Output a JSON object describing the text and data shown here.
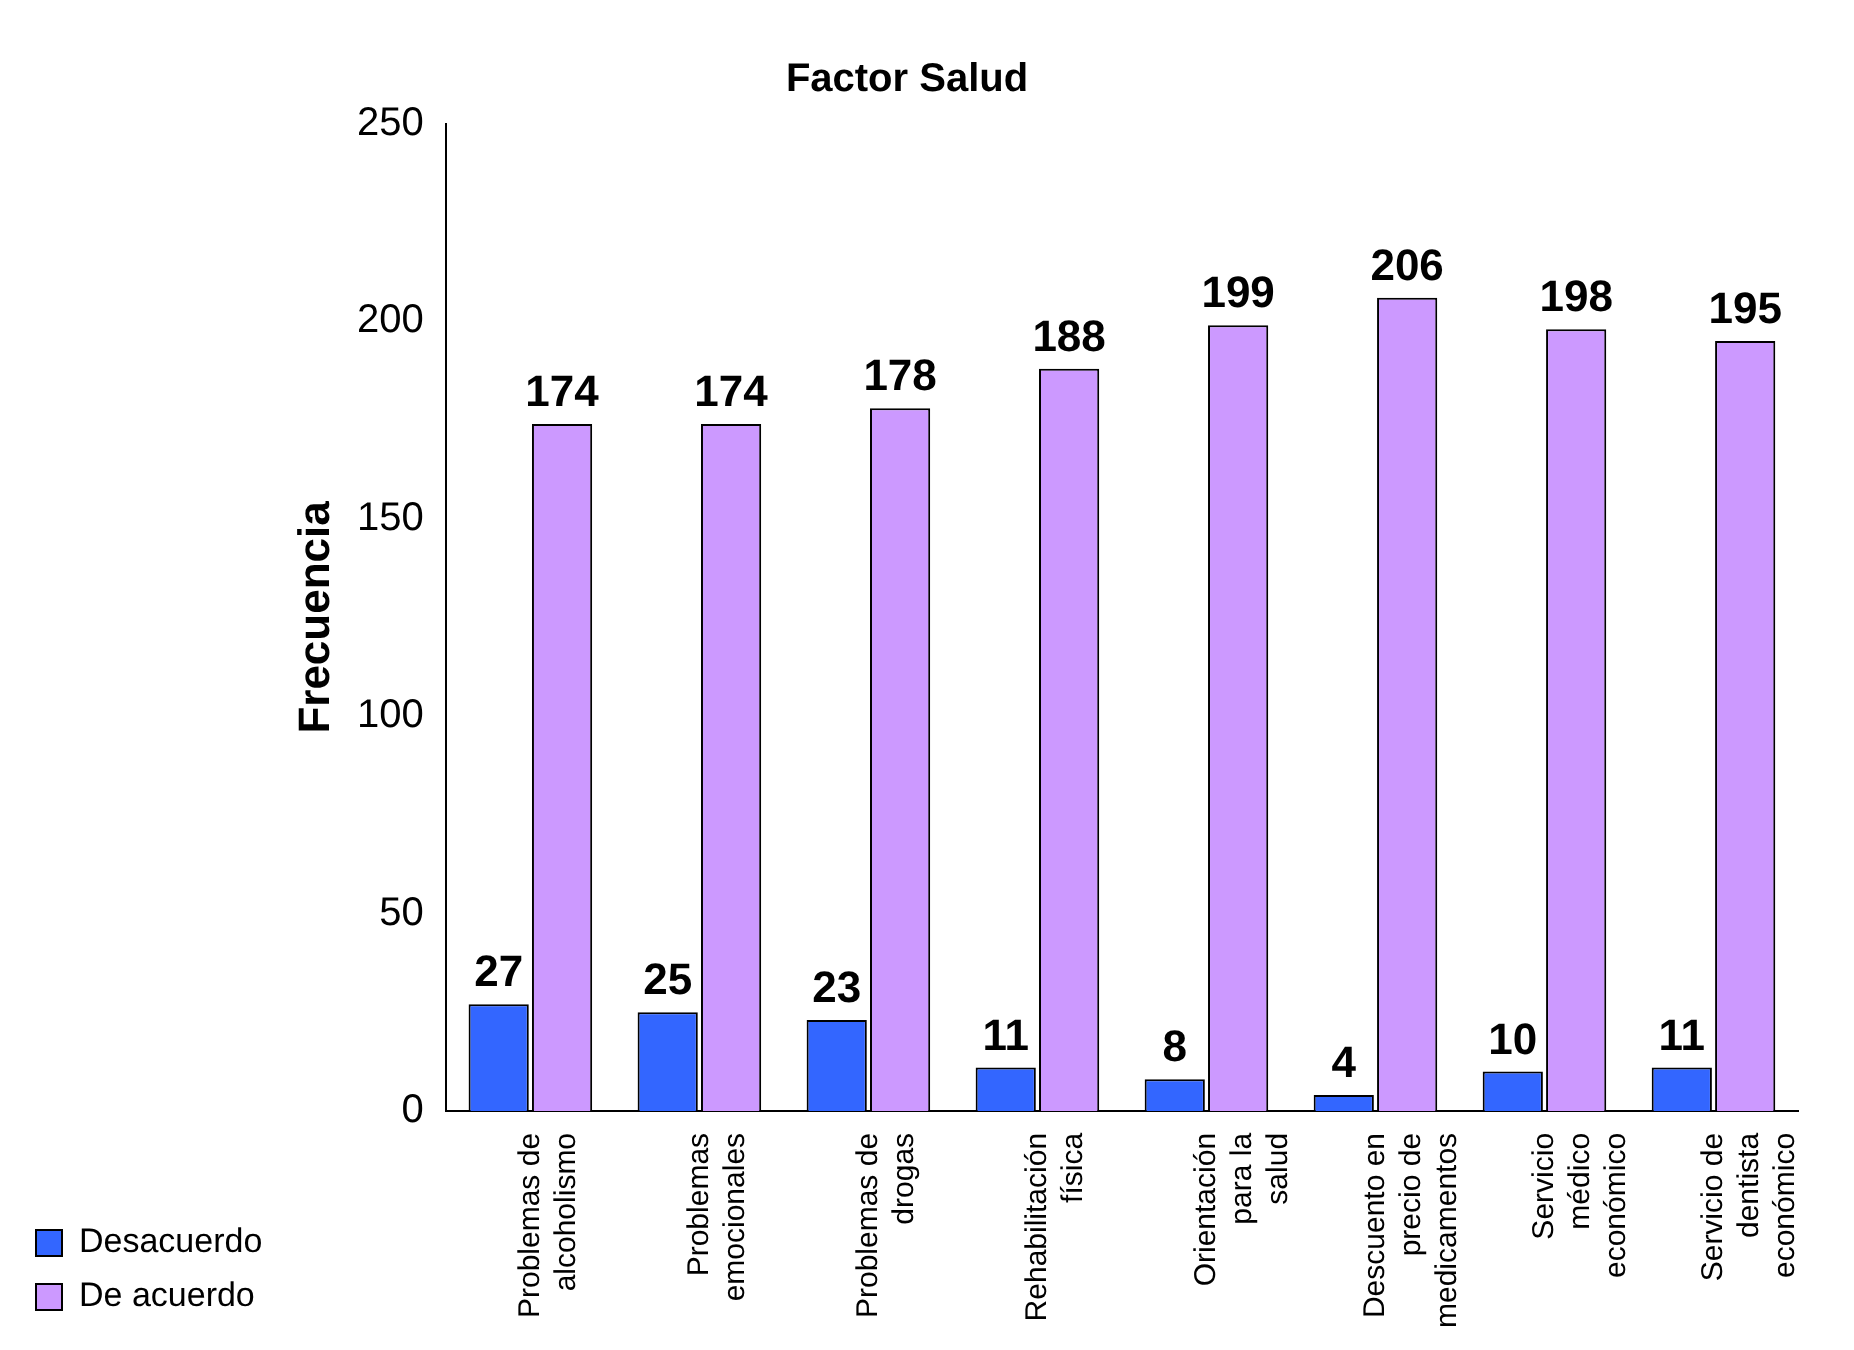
{
  "chart_data": {
    "type": "bar",
    "title": "Factor Salud",
    "ylabel": "Frecuencia",
    "categories": [
      "Problemas de alcoholismo",
      "Problemas emocionales",
      "Problemas de drogas",
      "Rehabilitación física",
      "Orientación para la salud",
      "Descuento en precio de medicamentos",
      "Servicio médico económico",
      "Servicio de dentista económico"
    ],
    "series": [
      {
        "name": "Desacuerdo",
        "color": "#3366ff",
        "values": [
          27,
          25,
          23,
          11,
          8,
          4,
          10,
          11
        ]
      },
      {
        "name": "De acuerdo",
        "color": "#cc99ff",
        "values": [
          174,
          174,
          178,
          188,
          199,
          206,
          198,
          195
        ]
      }
    ],
    "ylim": [
      0,
      250
    ],
    "yticks": [
      0,
      50,
      100,
      150,
      200,
      250
    ],
    "grid": false,
    "legend": "bottom left",
    "data_labels": true
  }
}
